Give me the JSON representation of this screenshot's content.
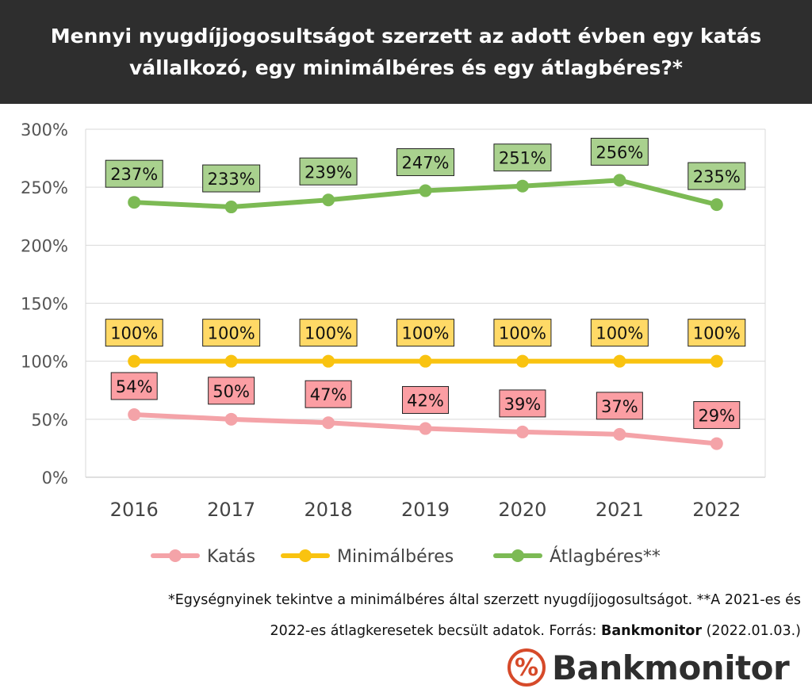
{
  "title": "Mennyi nyugdíjjogosultságot szerzett az adott évben egy katás vállalkozó, egy minimálbéres és egy átlagbéres?*",
  "chart_data": {
    "type": "line",
    "x": [
      "2016",
      "2017",
      "2018",
      "2019",
      "2020",
      "2021",
      "2022"
    ],
    "ylim": [
      0,
      300
    ],
    "yticks": [
      "0%",
      "50%",
      "100%",
      "150%",
      "200%",
      "250%",
      "300%"
    ],
    "grid": true,
    "legend_position": "bottom",
    "series": [
      {
        "name": "Katás",
        "color": "#f4a3a8",
        "label_bg": "#fb9ea3",
        "values": [
          54,
          50,
          47,
          42,
          39,
          37,
          29
        ],
        "labels": [
          "54%",
          "50%",
          "47%",
          "42%",
          "39%",
          "37%",
          "29%"
        ]
      },
      {
        "name": "Minimálbéres",
        "color": "#f9c310",
        "label_bg": "#ffd966",
        "values": [
          100,
          100,
          100,
          100,
          100,
          100,
          100
        ],
        "labels": [
          "100%",
          "100%",
          "100%",
          "100%",
          "100%",
          "100%",
          "100%"
        ]
      },
      {
        "name": "Átlagbéres**",
        "color": "#7cba54",
        "label_bg": "#a9d18e",
        "values": [
          237,
          233,
          239,
          247,
          251,
          256,
          235
        ],
        "labels": [
          "237%",
          "233%",
          "239%",
          "247%",
          "251%",
          "256%",
          "235%"
        ]
      }
    ]
  },
  "footnote": {
    "line1": "*Egységnyinek tekintve a minimálbéres által szerzett nyugdíjjogosultságot. **A 2021-es és",
    "line2_prefix": "2022-es átlagkeresetek becsült adatok. Forrás: ",
    "source": "Bankmonitor",
    "line2_suffix": " (2022.01.03.)"
  },
  "logo": {
    "symbol": "%",
    "text": "Bankmonitor",
    "color": "#d64a2a"
  }
}
